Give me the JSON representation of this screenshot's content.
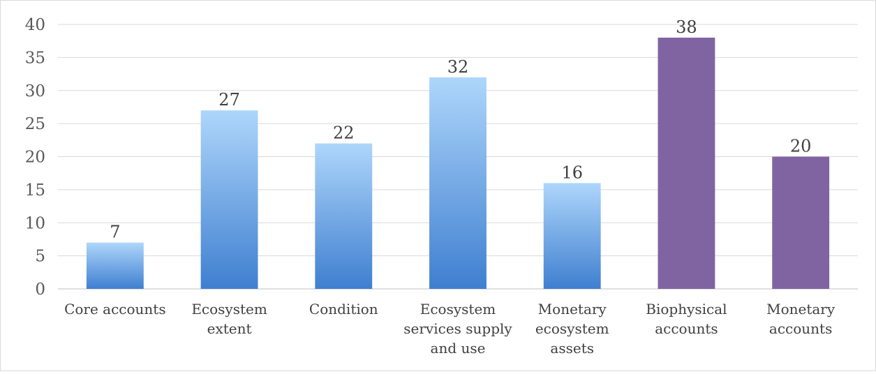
{
  "chart_data": {
    "type": "bar",
    "title": "",
    "xlabel": "",
    "ylabel": "",
    "ylim": [
      0,
      40
    ],
    "yticks": [
      0,
      5,
      10,
      15,
      20,
      25,
      30,
      35,
      40
    ],
    "grid": true,
    "legend": "none",
    "categories": [
      "Core accounts",
      "Ecosystem extent",
      "Condition",
      "Ecosystem services supply and use",
      "Monetary ecosystem assets",
      "Biophysical accounts",
      "Monetary accounts"
    ],
    "category_lines": [
      [
        "Core accounts"
      ],
      [
        "Ecosystem",
        "extent"
      ],
      [
        "Condition"
      ],
      [
        "Ecosystem",
        "services supply",
        "and use"
      ],
      [
        "Monetary",
        "ecosystem",
        "assets"
      ],
      [
        "Biophysical",
        "accounts"
      ],
      [
        "Monetary",
        "accounts"
      ]
    ],
    "values": [
      7,
      27,
      22,
      32,
      16,
      38,
      20
    ],
    "data_labels": [
      "7",
      "27",
      "22",
      "32",
      "16",
      "38",
      "20"
    ],
    "bar_styles": [
      "gradient",
      "gradient",
      "gradient",
      "gradient",
      "gradient",
      "solid",
      "solid"
    ],
    "colors": {
      "gradient_top": "#aed6fb",
      "gradient_bottom": "#3f7fd0",
      "solid": "#8064a2",
      "grid": "#d9d9d9",
      "axis": "#bfbfbf"
    }
  }
}
